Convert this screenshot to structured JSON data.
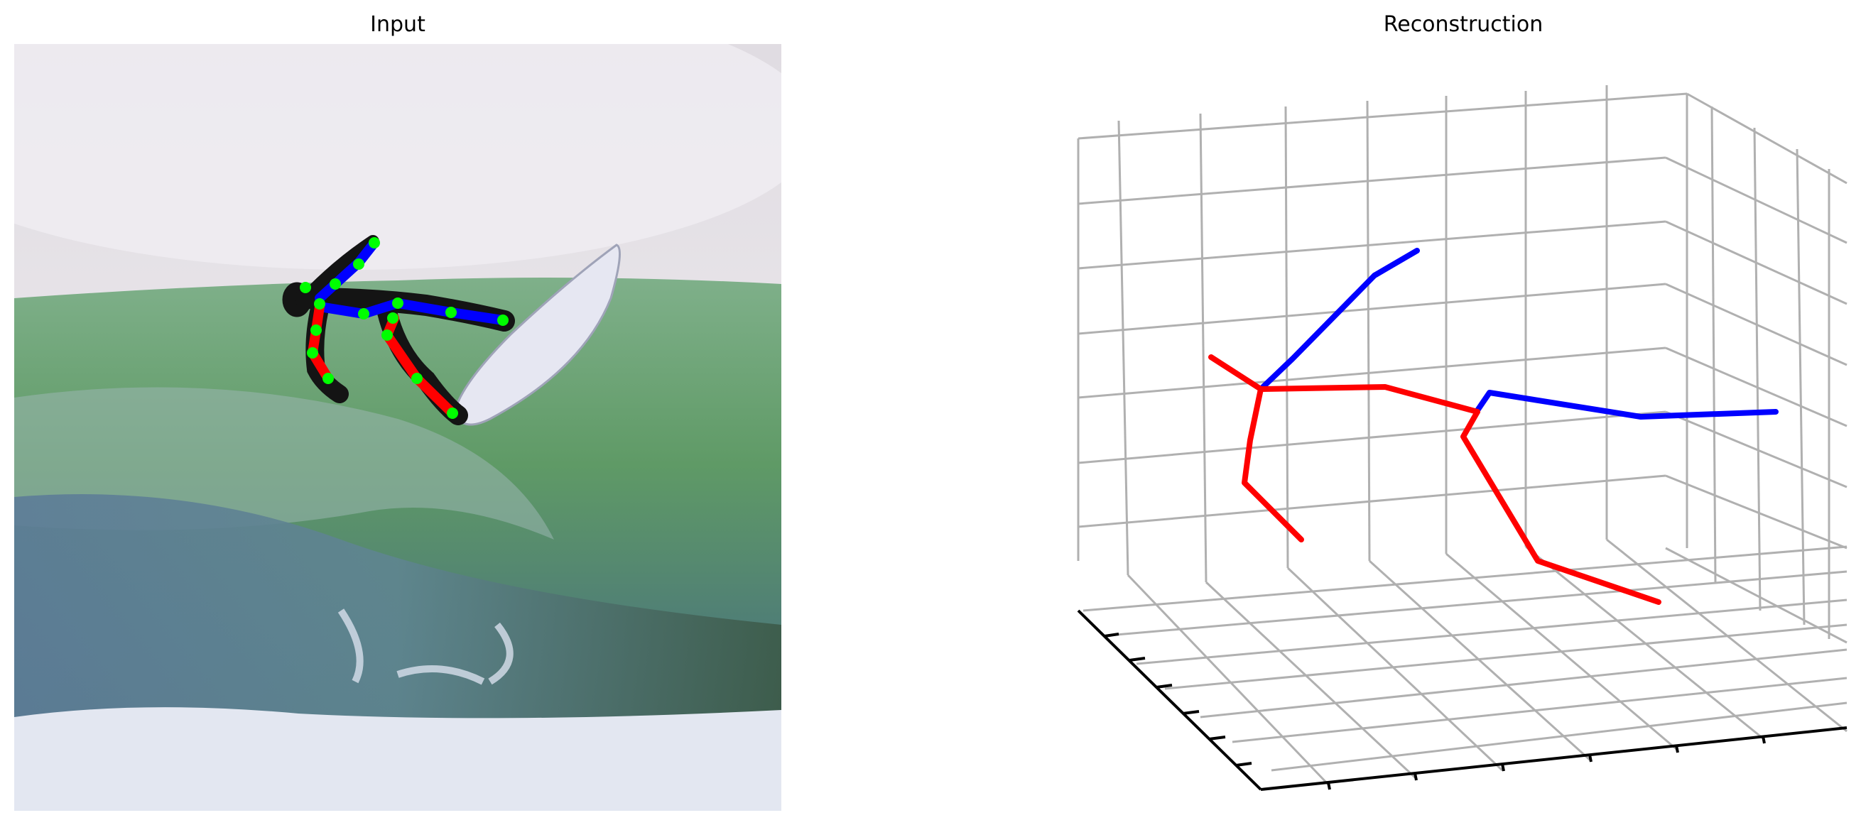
{
  "panels": {
    "input": {
      "title": "Input"
    },
    "reconstruction": {
      "title": "Reconstruction"
    }
  },
  "colors": {
    "limb_right": "#ff0000",
    "limb_left": "#0000ff",
    "joint": "#00ff00",
    "grid": "#b0b0b0",
    "axis": "#000000"
  },
  "scene": {
    "depicts": "surfer airborne above a breaking green wave with a white surfboard",
    "sky": "#e6e2e6",
    "spray": "#d9dbe0",
    "wave_green": "#5f9a66",
    "wave_dark": "#3f6a5a",
    "water_blue": "#5a7f9a",
    "foam": "#e4e8f0",
    "wetsuit": "#141414",
    "board": "#e8e8f2"
  }
}
